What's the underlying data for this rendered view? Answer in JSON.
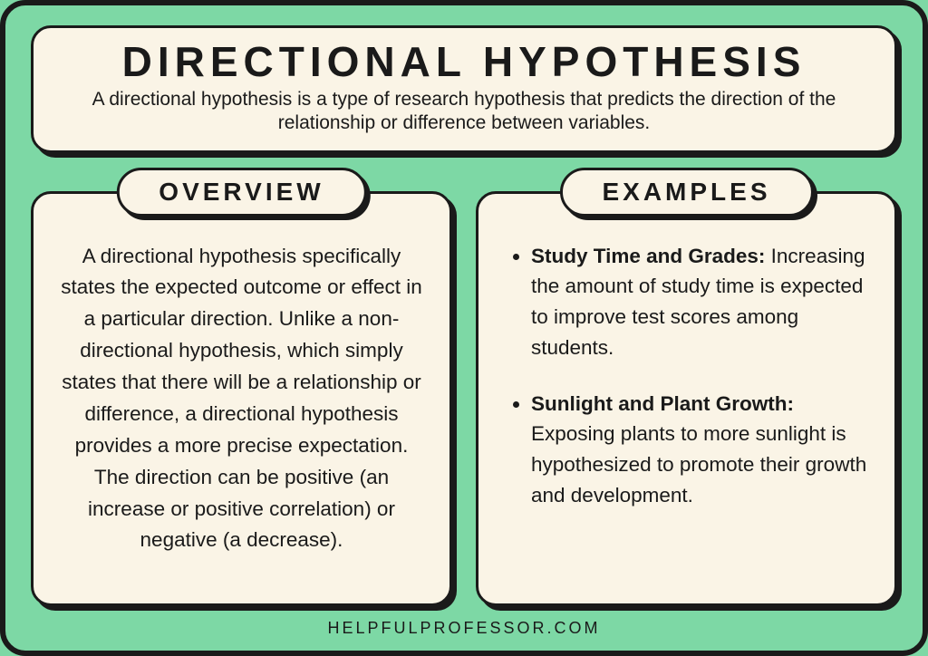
{
  "colors": {
    "background": "#7dd8a5",
    "card_bg": "#faf4e6",
    "border": "#1a1a1a",
    "text": "#1a1a1a"
  },
  "header": {
    "title": "DIRECTIONAL HYPOTHESIS",
    "subtitle": "A directional hypothesis is a type of research hypothesis that predicts the direction of the relationship or difference between variables."
  },
  "overview": {
    "label": "OVERVIEW",
    "body": "A directional hypothesis specifically states the expected outcome or effect in a particular direction. Unlike a non-directional hypothesis, which simply states that there will be a relationship or difference, a directional hypothesis provides a more precise expectation. The direction can be positive (an increase or positive correlation) or negative (a decrease)."
  },
  "examples": {
    "label": "EXAMPLES",
    "items": [
      {
        "title": "Study Time and Grades:",
        "body": "Increasing the amount of study time is expected to improve test scores among students."
      },
      {
        "title": "Sunlight and Plant Growth:",
        "body": "Exposing plants to more sunlight is hypothesized to promote their growth and development."
      }
    ]
  },
  "footer": "HELPFULPROFESSOR.COM"
}
